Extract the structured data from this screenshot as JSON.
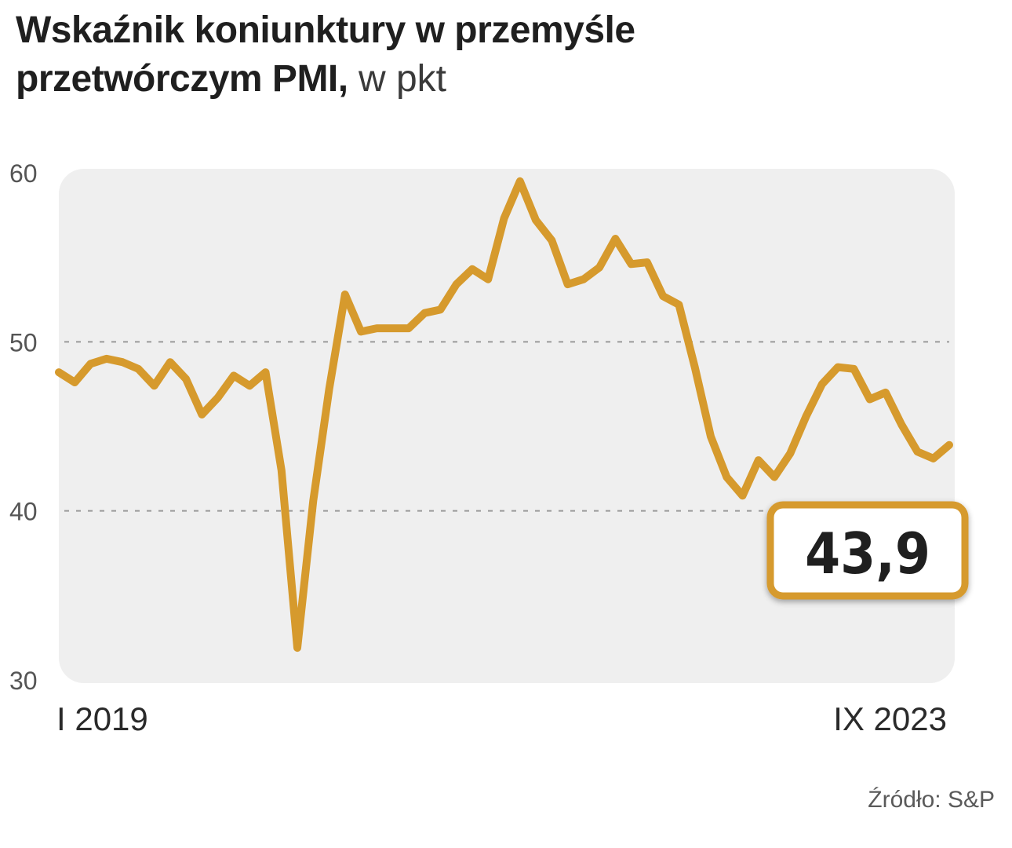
{
  "header": {
    "title_line1": "Wskaźnik koniunktury w przemyśle",
    "title_line2": "przetwórczym PMI,",
    "unit": "w pkt"
  },
  "source": "Źródło: S&P",
  "colors": {
    "line": "#D69A2D",
    "plot_bg": "#EFEFEF",
    "grid": "#9A9A9A",
    "callout_border": "#D69A2D",
    "text": "#1F1F1F"
  },
  "chart_data": {
    "type": "line",
    "ylim": [
      30,
      60
    ],
    "yticks": [
      "60",
      "50",
      "40",
      "30"
    ],
    "grid_dashed_at": [
      50,
      40
    ],
    "x_start_label": "I 2019",
    "x_end_label": "IX 2023",
    "callout": "43,9",
    "series": [
      {
        "values": [
          48.2,
          47.6,
          48.7,
          49.0,
          48.8,
          48.4,
          47.4,
          48.8,
          47.8,
          45.7,
          46.7,
          48.0,
          47.4,
          48.2,
          42.4,
          31.9,
          40.6,
          47.2,
          52.8,
          50.6,
          50.8,
          50.8,
          50.8,
          51.7,
          51.9,
          53.4,
          54.3,
          53.7,
          57.3,
          59.5,
          57.2,
          56.0,
          53.4,
          53.7,
          54.4,
          56.1,
          54.6,
          54.7,
          52.7,
          52.2,
          48.5,
          44.4,
          42.0,
          40.9,
          43.0,
          42.0,
          43.4,
          45.6,
          47.5,
          48.5,
          48.4,
          46.6,
          47.0,
          45.1,
          43.5,
          43.1,
          43.9
        ]
      }
    ]
  }
}
